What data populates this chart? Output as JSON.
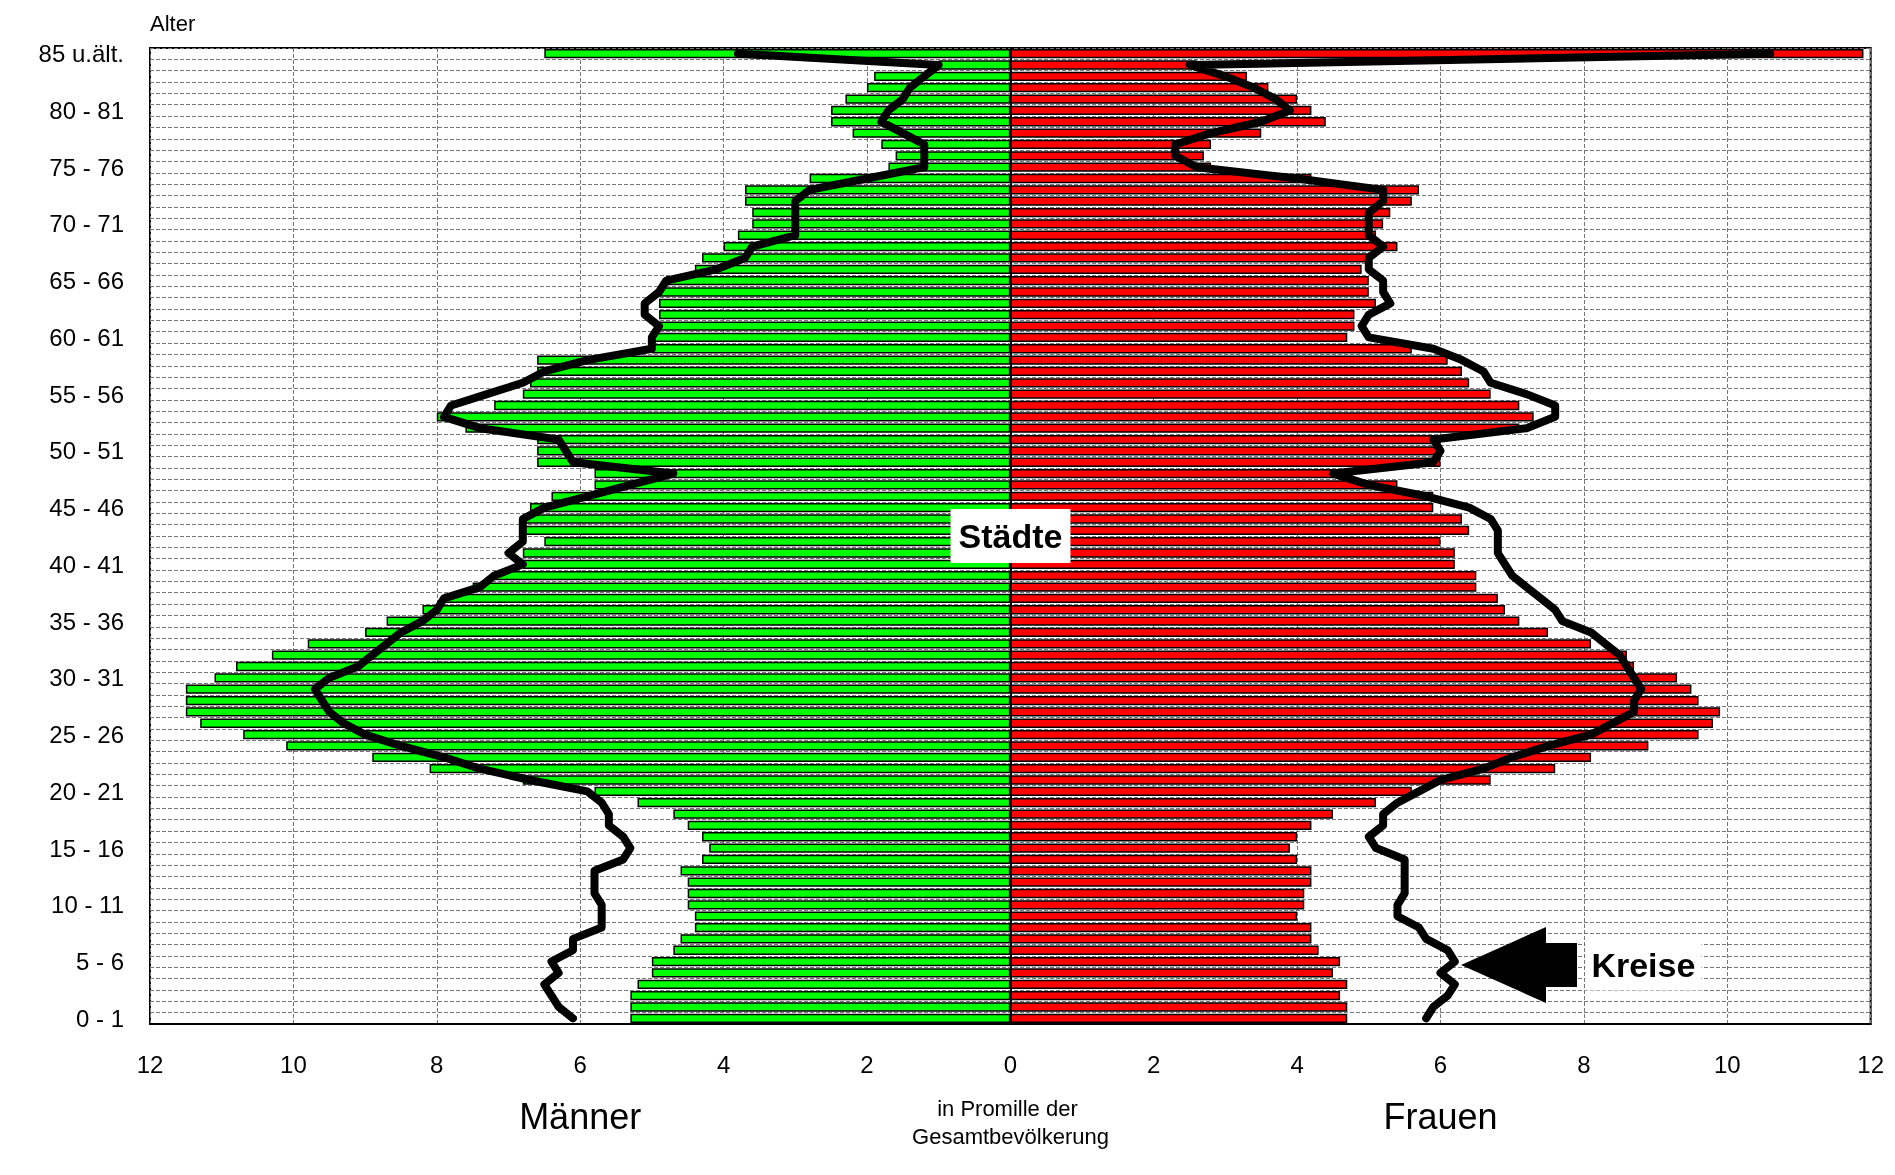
{
  "chart_data": {
    "type": "bar",
    "orientation": "horizontal",
    "stacked": true,
    "ylabel": "Alter",
    "xlabel": "in Promille der Gesamtbevölkerung",
    "categories": [
      "85 u.ält.",
      null,
      null,
      null,
      null,
      "80 - 81",
      null,
      null,
      null,
      null,
      "75 - 76",
      null,
      null,
      null,
      null,
      "70 - 71",
      null,
      null,
      null,
      null,
      "65 - 66",
      null,
      null,
      null,
      null,
      "60 - 61",
      null,
      null,
      null,
      null,
      "55 - 56",
      null,
      null,
      null,
      null,
      "50 - 51",
      null,
      null,
      null,
      null,
      "45 - 46",
      null,
      null,
      null,
      null,
      "40 - 41",
      null,
      null,
      null,
      null,
      "35 - 36",
      null,
      null,
      null,
      null,
      "30 - 31",
      null,
      null,
      null,
      null,
      "25 - 26",
      null,
      null,
      null,
      null,
      "20 - 21",
      null,
      null,
      null,
      null,
      "15 - 16",
      null,
      null,
      null,
      null,
      "10 - 11",
      null,
      null,
      null,
      null,
      "5 - 6",
      null,
      null,
      null,
      null,
      "0 - 1"
    ],
    "series": [
      {
        "name": "Männer",
        "color": "#00ff00",
        "values": [
          -6.5,
          -1.0,
          -1.9,
          -2.0,
          -2.3,
          -2.5,
          -2.5,
          -2.2,
          -1.8,
          -1.6,
          -1.7,
          -2.8,
          -3.7,
          -3.7,
          -3.6,
          -3.6,
          -3.8,
          -4.0,
          -4.3,
          -4.4,
          -4.8,
          -4.9,
          -4.9,
          -4.9,
          -4.9,
          -5.0,
          -5.0,
          -6.6,
          -6.6,
          -6.7,
          -6.8,
          -7.2,
          -8.0,
          -7.6,
          -6.6,
          -6.6,
          -6.6,
          -5.8,
          -5.8,
          -6.4,
          -6.7,
          -6.8,
          -6.8,
          -6.5,
          -6.8,
          -6.8,
          -7.2,
          -7.5,
          -7.9,
          -8.2,
          -8.7,
          -9.0,
          -9.8,
          -10.3,
          -10.8,
          -11.1,
          -11.5,
          -11.5,
          -11.5,
          -11.3,
          -10.7,
          -10.1,
          -8.9,
          -8.1,
          -6.8,
          -5.8,
          -5.2,
          -4.7,
          -4.5,
          -4.3,
          -4.2,
          -4.3,
          -4.6,
          -4.5,
          -4.5,
          -4.5,
          -4.4,
          -4.4,
          -4.6,
          -4.7,
          -5.0,
          -5.0,
          -5.2,
          -5.3,
          -5.3,
          -5.3
        ]
      },
      {
        "name": "Frauen",
        "color": "#ff0000",
        "values": [
          11.9,
          2.6,
          3.3,
          3.6,
          4.0,
          4.2,
          4.4,
          3.5,
          2.8,
          2.7,
          2.8,
          4.2,
          5.7,
          5.6,
          5.3,
          5.2,
          5.1,
          5.4,
          5.0,
          4.9,
          5.0,
          5.0,
          5.1,
          4.8,
          4.8,
          4.7,
          5.6,
          6.1,
          6.3,
          6.4,
          6.7,
          7.1,
          7.3,
          7.1,
          6.0,
          6.0,
          6.0,
          4.6,
          5.4,
          5.9,
          5.9,
          6.3,
          6.4,
          6.0,
          6.2,
          6.2,
          6.5,
          6.5,
          6.8,
          6.9,
          7.1,
          7.5,
          8.1,
          8.6,
          8.7,
          9.3,
          9.5,
          9.6,
          9.9,
          9.8,
          9.6,
          8.9,
          8.1,
          7.6,
          6.7,
          5.6,
          5.1,
          4.5,
          4.2,
          4.0,
          3.9,
          4.0,
          4.2,
          4.2,
          4.1,
          4.1,
          4.0,
          4.2,
          4.2,
          4.3,
          4.6,
          4.5,
          4.7,
          4.6,
          4.7,
          4.7
        ]
      },
      {
        "type": "line",
        "color": "#000000",
        "values": [
          -3.8,
          -1.0,
          -1.2,
          -1.4,
          -1.5,
          -1.7,
          -1.8,
          -1.5,
          -1.2,
          -1.2,
          -1.2,
          -2.0,
          -2.8,
          -3.0,
          -3.0,
          -3.0,
          -3.0,
          -3.6,
          -3.7,
          -4.1,
          -4.8,
          -4.9,
          -5.1,
          -5.1,
          -4.9,
          -5.0,
          -5.0,
          -5.9,
          -6.5,
          -6.8,
          -7.3,
          -7.8,
          -7.9,
          -7.4,
          -6.3,
          -6.2,
          -6.1,
          -4.7,
          -5.3,
          -5.9,
          -6.5,
          -6.8,
          -6.8,
          -6.8,
          -7.0,
          -6.8,
          -7.2,
          -7.4,
          -7.9,
          -8.0,
          -8.2,
          -8.5,
          -8.7,
          -8.9,
          -9.1,
          -9.5,
          -9.7,
          -9.6,
          -9.5,
          -9.3,
          -9.0,
          -8.5,
          -7.9,
          -7.4,
          -6.7,
          -5.9,
          -5.7,
          -5.6,
          -5.6,
          -5.4,
          -5.3,
          -5.4,
          -5.8,
          -5.8,
          -5.8,
          -5.7,
          -5.7,
          -5.7,
          -6.1,
          -6.1,
          -6.4,
          -6.3,
          -6.5,
          -6.4,
          -6.3,
          -6.1
        ]
      },
      {
        "type": "line",
        "color": "#000000",
        "values": [
          10.6,
          2.5,
          3.0,
          3.4,
          3.7,
          3.9,
          3.5,
          2.8,
          2.3,
          2.3,
          2.6,
          4.0,
          5.2,
          5.2,
          5.0,
          5.0,
          5.0,
          5.2,
          5.0,
          5.0,
          5.2,
          5.2,
          5.3,
          5.0,
          4.9,
          5.0,
          5.9,
          6.3,
          6.6,
          6.7,
          7.2,
          7.6,
          7.6,
          7.2,
          5.9,
          6.0,
          5.9,
          4.5,
          5.0,
          5.8,
          6.4,
          6.7,
          6.8,
          6.8,
          6.8,
          6.9,
          7.0,
          7.2,
          7.4,
          7.6,
          7.7,
          8.1,
          8.3,
          8.5,
          8.6,
          8.7,
          8.8,
          8.7,
          8.7,
          8.4,
          8.1,
          7.5,
          7.0,
          6.6,
          6.0,
          5.7,
          5.4,
          5.2,
          5.2,
          5.0,
          5.1,
          5.5,
          5.5,
          5.5,
          5.5,
          5.4,
          5.4,
          5.7,
          5.8,
          6.1,
          6.2,
          6.0,
          6.2,
          6.1,
          5.9,
          5.8
        ]
      }
    ],
    "xlim": [
      -12,
      12
    ],
    "xticks": [
      {
        "value": -12,
        "label": "12"
      },
      {
        "value": -10,
        "label": "10"
      },
      {
        "value": -8,
        "label": "8"
      },
      {
        "value": -6,
        "label": "6"
      },
      {
        "value": -4,
        "label": "4"
      },
      {
        "value": -2,
        "label": "2"
      },
      0,
      2,
      4,
      6,
      8,
      10,
      12
    ],
    "grid": true,
    "line_style": "solid",
    "annotations": [
      "Städte",
      "Kreise"
    ]
  }
}
